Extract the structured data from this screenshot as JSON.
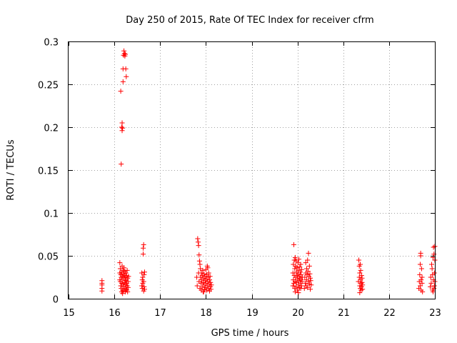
{
  "colors": {
    "series": "#ff0000",
    "axis": "#000000",
    "grid": "#a0a0a0"
  },
  "chart_data": {
    "type": "scatter",
    "title": "Day 250 of 2015, Rate Of TEC Index for receiver cfrm",
    "xlabel": "GPS time / hours",
    "ylabel": "ROTI / TECUs",
    "xlim": [
      15,
      23
    ],
    "ylim": [
      0,
      0.3
    ],
    "xticks": [
      15,
      16,
      17,
      18,
      19,
      20,
      21,
      22,
      23
    ],
    "yticks": [
      0,
      0.05,
      0.1,
      0.15,
      0.2,
      0.25,
      0.3
    ],
    "grid": true,
    "marker": "plus",
    "series": [
      {
        "name": "ROTI",
        "points": [
          [
            15.73,
            0.012
          ],
          [
            15.73,
            0.016
          ],
          [
            15.73,
            0.021
          ],
          [
            15.73,
            0.009
          ],
          [
            15.73,
            0.018
          ],
          [
            16.12,
            0.042
          ],
          [
            16.12,
            0.022
          ],
          [
            16.12,
            0.03
          ],
          [
            16.13,
            0.02
          ],
          [
            16.13,
            0.035
          ],
          [
            16.14,
            0.015
          ],
          [
            16.14,
            0.028
          ],
          [
            16.15,
            0.025
          ],
          [
            16.15,
            0.012
          ],
          [
            16.16,
            0.031
          ],
          [
            16.16,
            0.018
          ],
          [
            16.17,
            0.038
          ],
          [
            16.17,
            0.022
          ],
          [
            16.18,
            0.01
          ],
          [
            16.18,
            0.026
          ],
          [
            16.19,
            0.033
          ],
          [
            16.19,
            0.017
          ],
          [
            16.2,
            0.029
          ],
          [
            16.2,
            0.014
          ],
          [
            16.21,
            0.024
          ],
          [
            16.21,
            0.036
          ],
          [
            16.22,
            0.019
          ],
          [
            16.22,
            0.027
          ],
          [
            16.23,
            0.012
          ],
          [
            16.23,
            0.032
          ],
          [
            16.24,
            0.021
          ],
          [
            16.24,
            0.025
          ],
          [
            16.25,
            0.016
          ],
          [
            16.25,
            0.03
          ],
          [
            16.26,
            0.022
          ],
          [
            16.26,
            0.011
          ],
          [
            16.27,
            0.027
          ],
          [
            16.27,
            0.018
          ],
          [
            16.28,
            0.033
          ],
          [
            16.28,
            0.015
          ],
          [
            16.29,
            0.024
          ],
          [
            16.3,
            0.02
          ],
          [
            16.3,
            0.013
          ],
          [
            16.31,
            0.026
          ],
          [
            16.16,
            0.008
          ],
          [
            16.18,
            0.006
          ],
          [
            16.2,
            0.009
          ],
          [
            16.24,
            0.008
          ],
          [
            16.27,
            0.01
          ],
          [
            16.29,
            0.008
          ],
          [
            16.14,
            0.242
          ],
          [
            16.15,
            0.157
          ],
          [
            16.16,
            0.2
          ],
          [
            16.17,
            0.205
          ],
          [
            16.17,
            0.196
          ],
          [
            16.18,
            0.199
          ],
          [
            16.19,
            0.253
          ],
          [
            16.19,
            0.268
          ],
          [
            16.2,
            0.284
          ],
          [
            16.21,
            0.289
          ],
          [
            16.22,
            0.286
          ],
          [
            16.23,
            0.283
          ],
          [
            16.24,
            0.285
          ],
          [
            16.25,
            0.268
          ],
          [
            16.26,
            0.259
          ],
          [
            16.6,
            0.03
          ],
          [
            16.6,
            0.015
          ],
          [
            16.61,
            0.012
          ],
          [
            16.61,
            0.022
          ],
          [
            16.62,
            0.018
          ],
          [
            16.62,
            0.025
          ],
          [
            16.63,
            0.052
          ],
          [
            16.63,
            0.059
          ],
          [
            16.64,
            0.063
          ],
          [
            16.64,
            0.02
          ],
          [
            16.65,
            0.014
          ],
          [
            16.65,
            0.028
          ],
          [
            16.66,
            0.031
          ],
          [
            16.66,
            0.011
          ],
          [
            16.64,
            0.009
          ],
          [
            17.8,
            0.025
          ],
          [
            17.81,
            0.015
          ],
          [
            17.82,
            0.07
          ],
          [
            17.83,
            0.066
          ],
          [
            17.84,
            0.062
          ],
          [
            17.84,
            0.03
          ],
          [
            17.85,
            0.051
          ],
          [
            17.85,
            0.02
          ],
          [
            17.86,
            0.044
          ],
          [
            17.87,
            0.04
          ],
          [
            17.87,
            0.012
          ],
          [
            17.88,
            0.035
          ],
          [
            17.88,
            0.025
          ],
          [
            17.89,
            0.018
          ],
          [
            17.9,
            0.03
          ],
          [
            17.9,
            0.01
          ],
          [
            17.91,
            0.022
          ],
          [
            17.92,
            0.027
          ],
          [
            17.92,
            0.014
          ],
          [
            17.93,
            0.033
          ],
          [
            17.94,
            0.019
          ],
          [
            17.94,
            0.008
          ],
          [
            17.95,
            0.024
          ],
          [
            17.96,
            0.016
          ],
          [
            17.96,
            0.029
          ],
          [
            17.97,
            0.011
          ],
          [
            17.98,
            0.021
          ],
          [
            17.98,
            0.026
          ],
          [
            17.99,
            0.013
          ],
          [
            18.0,
            0.034
          ],
          [
            18.0,
            0.018
          ],
          [
            18.01,
            0.023
          ],
          [
            18.02,
            0.01
          ],
          [
            18.02,
            0.028
          ],
          [
            18.03,
            0.015
          ],
          [
            18.04,
            0.036
          ],
          [
            18.04,
            0.02
          ],
          [
            18.05,
            0.025
          ],
          [
            18.06,
            0.012
          ],
          [
            18.06,
            0.03
          ],
          [
            18.07,
            0.017
          ],
          [
            18.08,
            0.022
          ],
          [
            18.08,
            0.009
          ],
          [
            18.09,
            0.026
          ],
          [
            18.1,
            0.014
          ],
          [
            18.1,
            0.019
          ],
          [
            18.11,
            0.011
          ],
          [
            18.12,
            0.016
          ],
          [
            18.03,
            0.038
          ],
          [
            17.95,
            0.008
          ],
          [
            19.9,
            0.015
          ],
          [
            19.9,
            0.03
          ],
          [
            19.91,
            0.022
          ],
          [
            19.91,
            0.04
          ],
          [
            19.92,
            0.018
          ],
          [
            19.92,
            0.063
          ],
          [
            19.93,
            0.045
          ],
          [
            19.93,
            0.027
          ],
          [
            19.94,
            0.012
          ],
          [
            19.94,
            0.035
          ],
          [
            19.95,
            0.048
          ],
          [
            19.95,
            0.02
          ],
          [
            19.96,
            0.038
          ],
          [
            19.96,
            0.025
          ],
          [
            19.97,
            0.014
          ],
          [
            19.97,
            0.044
          ],
          [
            19.98,
            0.031
          ],
          [
            19.98,
            0.019
          ],
          [
            19.99,
            0.027
          ],
          [
            19.99,
            0.036
          ],
          [
            20.0,
            0.01
          ],
          [
            20.0,
            0.023
          ],
          [
            20.01,
            0.042
          ],
          [
            20.01,
            0.029
          ],
          [
            20.02,
            0.016
          ],
          [
            20.02,
            0.033
          ],
          [
            20.03,
            0.021
          ],
          [
            20.03,
            0.046
          ],
          [
            20.04,
            0.026
          ],
          [
            20.04,
            0.013
          ],
          [
            20.05,
            0.037
          ],
          [
            20.05,
            0.024
          ],
          [
            20.06,
            0.018
          ],
          [
            20.06,
            0.031
          ],
          [
            20.07,
            0.012
          ],
          [
            20.07,
            0.04
          ],
          [
            20.08,
            0.022
          ],
          [
            20.08,
            0.028
          ],
          [
            20.09,
            0.015
          ],
          [
            20.09,
            0.034
          ],
          [
            20.1,
            0.02
          ],
          [
            20.11,
            0.025
          ],
          [
            19.95,
            0.008
          ],
          [
            20.02,
            0.007
          ],
          [
            20.15,
            0.012
          ],
          [
            20.16,
            0.025
          ],
          [
            20.17,
            0.018
          ],
          [
            20.18,
            0.042
          ],
          [
            20.18,
            0.03
          ],
          [
            20.19,
            0.015
          ],
          [
            20.2,
            0.035
          ],
          [
            20.2,
            0.022
          ],
          [
            20.21,
            0.028
          ],
          [
            20.22,
            0.045
          ],
          [
            20.22,
            0.013
          ],
          [
            20.23,
            0.032
          ],
          [
            20.24,
            0.053
          ],
          [
            20.24,
            0.02
          ],
          [
            20.25,
            0.026
          ],
          [
            20.26,
            0.038
          ],
          [
            20.26,
            0.017
          ],
          [
            20.27,
            0.029
          ],
          [
            20.28,
            0.011
          ],
          [
            20.28,
            0.024
          ],
          [
            20.29,
            0.021
          ],
          [
            20.3,
            0.016
          ],
          [
            21.33,
            0.02
          ],
          [
            21.34,
            0.045
          ],
          [
            21.35,
            0.038
          ],
          [
            21.35,
            0.025
          ],
          [
            21.36,
            0.015
          ],
          [
            21.36,
            0.03
          ],
          [
            21.37,
            0.04
          ],
          [
            21.37,
            0.012
          ],
          [
            21.38,
            0.022
          ],
          [
            21.38,
            0.033
          ],
          [
            21.39,
            0.018
          ],
          [
            21.39,
            0.01
          ],
          [
            21.4,
            0.027
          ],
          [
            21.4,
            0.014
          ],
          [
            21.41,
            0.024
          ],
          [
            21.41,
            0.019
          ],
          [
            21.42,
            0.016
          ],
          [
            21.42,
            0.011
          ],
          [
            21.36,
            0.007
          ],
          [
            22.65,
            0.012
          ],
          [
            22.66,
            0.02
          ],
          [
            22.67,
            0.028
          ],
          [
            22.68,
            0.04
          ],
          [
            22.68,
            0.015
          ],
          [
            22.69,
            0.053
          ],
          [
            22.69,
            0.05
          ],
          [
            22.7,
            0.022
          ],
          [
            22.7,
            0.01
          ],
          [
            22.71,
            0.035
          ],
          [
            22.72,
            0.018
          ],
          [
            22.72,
            0.025
          ],
          [
            22.73,
            0.008
          ],
          [
            22.9,
            0.014
          ],
          [
            22.91,
            0.025
          ],
          [
            22.92,
            0.018
          ],
          [
            22.93,
            0.04
          ],
          [
            22.94,
            0.035
          ],
          [
            22.95,
            0.028
          ],
          [
            22.95,
            0.01
          ],
          [
            22.96,
            0.048
          ],
          [
            22.97,
            0.06
          ],
          [
            22.97,
            0.022
          ],
          [
            22.98,
            0.052
          ],
          [
            22.99,
            0.03
          ],
          [
            22.99,
            0.015
          ],
          [
            23.0,
            0.045
          ],
          [
            23.0,
            0.061
          ],
          [
            23.0,
            0.02
          ],
          [
            22.96,
            0.008
          ],
          [
            22.98,
            0.012
          ]
        ]
      }
    ]
  }
}
